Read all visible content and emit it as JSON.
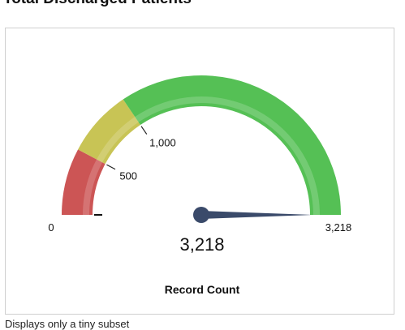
{
  "page": {
    "title": "Total Discharged Patients",
    "footer": "Displays only a tiny subset"
  },
  "chart_data": {
    "type": "gauge",
    "min": 0,
    "max": 3218,
    "value": 3218,
    "value_label": "3,218",
    "label": "Record Count",
    "min_label": "0",
    "max_label": "3,218",
    "bands": [
      {
        "from": 0,
        "to": 500,
        "color": "#cc5555"
      },
      {
        "from": 500,
        "to": 1000,
        "color": "#c8c455"
      },
      {
        "from": 1000,
        "to": 3218,
        "color": "#55c055"
      }
    ],
    "ticks": [
      {
        "value": 500,
        "label": "500"
      },
      {
        "value": 1000,
        "label": "1,000"
      }
    ],
    "needle_color": "#3a4a6a"
  }
}
